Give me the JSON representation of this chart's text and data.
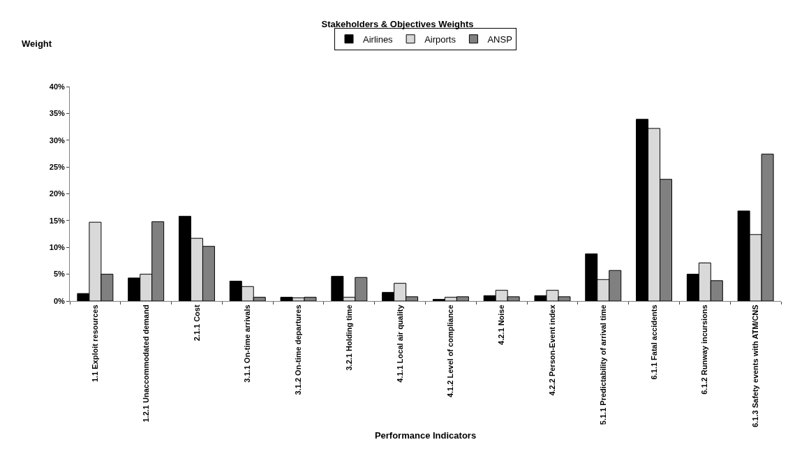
{
  "chart_data": {
    "type": "bar",
    "title": "Stakeholders & Objectives Weights",
    "xlabel": "Performance Indicators",
    "ylabel": "Weight",
    "categories": [
      "1.1 Exploit resources",
      "1.2.1 Unaccommodated demand",
      "2.1.1 Cost",
      "3.1.1 On-time arrivals",
      "3.1.2 On-time departures",
      "3.2.1 Holding time",
      "4.1.1 Local air quality",
      "4.1.2 Level of compliance",
      "4.2.1 Noise",
      "4.2.2 Person-Event index",
      "5.1.1 Predictability of arrival time",
      "6.1.1 Fatal accidents",
      "6.1.2 Runway incursions",
      "6.1.3 Safety events with ATM/CNS"
    ],
    "series": [
      {
        "name": "Airlines",
        "color": "#000000",
        "values": [
          1.4,
          4.3,
          15.8,
          3.7,
          0.7,
          4.6,
          1.6,
          0.3,
          1.0,
          1.0,
          8.8,
          33.9,
          5.0,
          16.8
        ]
      },
      {
        "name": "Airports",
        "color": "#d9d9d9",
        "values": [
          14.7,
          5.0,
          11.7,
          2.7,
          0.6,
          0.7,
          3.3,
          0.7,
          2.0,
          2.0,
          4.0,
          32.2,
          7.1,
          12.4
        ]
      },
      {
        "name": "ANSP",
        "color": "#808080",
        "values": [
          5.0,
          14.8,
          10.2,
          0.7,
          0.7,
          4.4,
          0.8,
          0.8,
          0.8,
          0.8,
          5.7,
          22.7,
          3.8,
          27.4
        ]
      }
    ],
    "ylim": [
      0,
      40
    ],
    "yticks": [
      {
        "value": 0,
        "label": "0%"
      },
      {
        "value": 5,
        "label": "5%"
      },
      {
        "value": 10,
        "label": "10%"
      },
      {
        "value": 15,
        "label": "15%"
      },
      {
        "value": 20,
        "label": "20%"
      },
      {
        "value": 25,
        "label": "25%"
      },
      {
        "value": 30,
        "label": "30%"
      },
      {
        "value": 35,
        "label": "35%"
      },
      {
        "value": 40,
        "label": "40%"
      }
    ],
    "grid": false,
    "legend": "top"
  }
}
